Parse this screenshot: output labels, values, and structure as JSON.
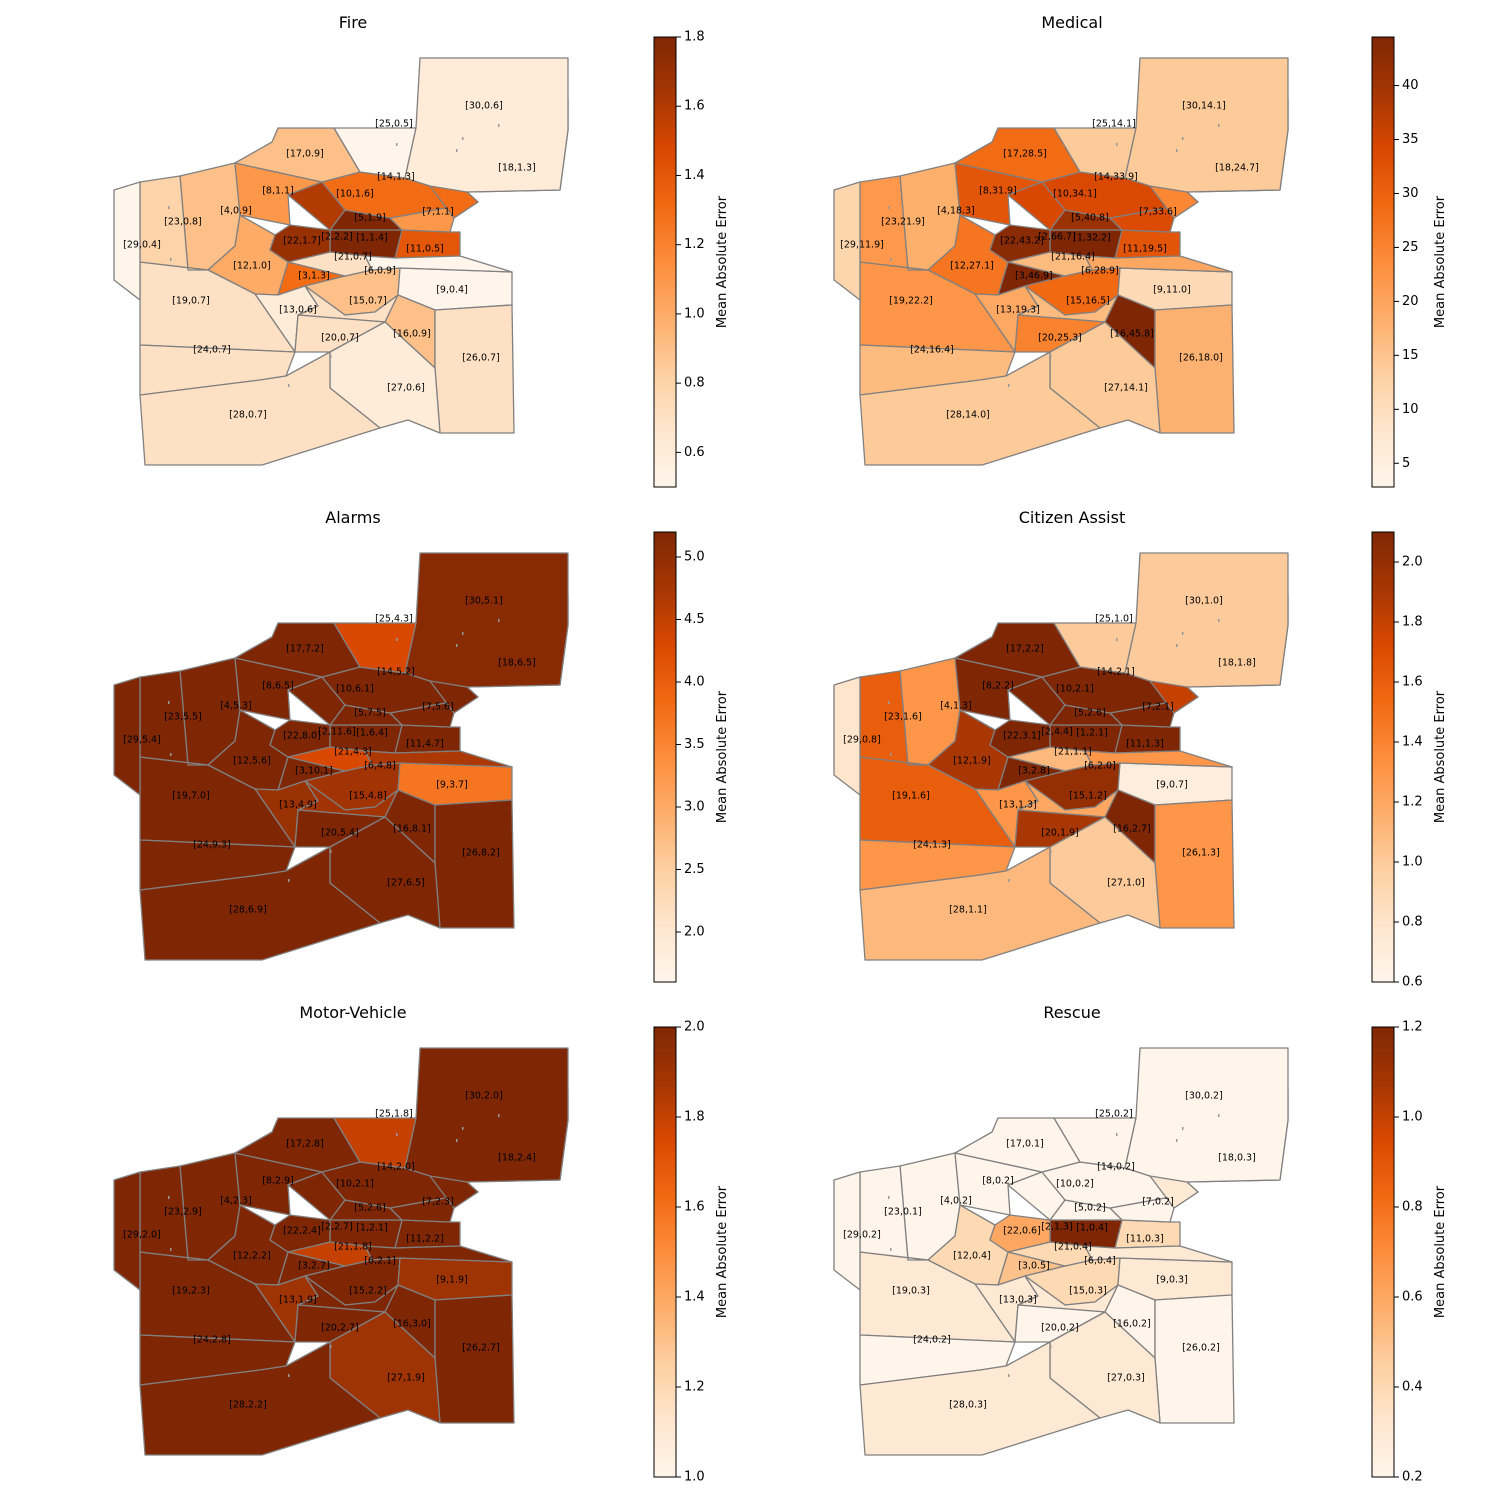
{
  "chart_data": [
    {
      "type": "choropleth",
      "title": "Fire",
      "colorbar_label": "Mean Absolute Error",
      "vmin": 0.5,
      "vmax": 1.8,
      "ticks": [
        0.6,
        0.8,
        1.0,
        1.2,
        1.4,
        1.6,
        1.8
      ],
      "tick_labels": [
        "0.6",
        "0.8",
        "1.0",
        "1.2",
        "1.4",
        "1.6",
        "1.8"
      ],
      "regions": {
        "1": {
          "value": 1.4,
          "label": "[1,1.4]"
        },
        "2": {
          "value": 2.2,
          "label": "[2,2.2]"
        },
        "3": {
          "value": 1.3,
          "label": "[3,1.3]"
        },
        "4": {
          "value": 0.9,
          "label": "[4,0.9]"
        },
        "5": {
          "value": 1.9,
          "label": "[5,1.9]"
        },
        "6": {
          "value": 0.9,
          "label": "[6,0.9]"
        },
        "7": {
          "value": 1.1,
          "label": "[7,1.1]"
        },
        "8": {
          "value": 1.1,
          "label": "[8,1.1]"
        },
        "9": {
          "value": 0.4,
          "label": "[9,0.4]"
        },
        "10": {
          "value": 1.6,
          "label": "[10,1.6]"
        },
        "11": {
          "value": 0.5,
          "label": "[11,0.5]"
        },
        "12": {
          "value": 1.0,
          "label": "[12,1.0]"
        },
        "13": {
          "value": 0.6,
          "label": "[13,0.6]"
        },
        "14": {
          "value": 1.3,
          "label": "[14,1.3]"
        },
        "15": {
          "value": 0.7,
          "label": "[15,0.7]"
        },
        "16": {
          "value": 0.9,
          "label": "[16,0.9]"
        },
        "17": {
          "value": 0.9,
          "label": "[17,0.9]"
        },
        "18": {
          "value": 1.3,
          "label": "[18,1.3]"
        },
        "19": {
          "value": 0.7,
          "label": "[19,0.7]"
        },
        "20": {
          "value": 0.7,
          "label": "[20,0.7]"
        },
        "21": {
          "value": 0.7,
          "label": "[21,0.7]"
        },
        "22": {
          "value": 1.7,
          "label": "[22,1.7]"
        },
        "23": {
          "value": 0.8,
          "label": "[23,0.8]"
        },
        "24": {
          "value": 0.7,
          "label": "[24,0.7]"
        },
        "25": {
          "value": 0.5,
          "label": "[25,0.5]"
        },
        "26": {
          "value": 0.7,
          "label": "[26,0.7]"
        },
        "27": {
          "value": 0.6,
          "label": "[27,0.6]"
        },
        "28": {
          "value": 0.7,
          "label": "[28,0.7]"
        },
        "29": {
          "value": 0.4,
          "label": "[29,0.4]"
        },
        "30": {
          "value": 0.6,
          "label": "[30,0.6]"
        }
      }
    },
    {
      "type": "choropleth",
      "title": "Medical",
      "colorbar_label": "Mean Absolute Error",
      "vmin": 2.8,
      "vmax": 44.5,
      "ticks": [
        5,
        10,
        15,
        20,
        25,
        30,
        35,
        40
      ],
      "tick_labels": [
        "5",
        "10",
        "15",
        "20",
        "25",
        "30",
        "35",
        "40"
      ],
      "regions": {
        "1": {
          "value": 32.2,
          "label": "[1,32.2]"
        },
        "2": {
          "value": 66.7,
          "label": "[2,66.7]"
        },
        "3": {
          "value": 46.9,
          "label": "[3,46.9]"
        },
        "4": {
          "value": 18.3,
          "label": "[4,18.3]"
        },
        "5": {
          "value": 40.8,
          "label": "[5,40.8]"
        },
        "6": {
          "value": 28.9,
          "label": "[6,28.9]"
        },
        "7": {
          "value": 33.6,
          "label": "[7,33.6]"
        },
        "8": {
          "value": 31.9,
          "label": "[8,31.9]"
        },
        "9": {
          "value": 11.0,
          "label": "[9,11.0]"
        },
        "10": {
          "value": 34.1,
          "label": "[10,34.1]"
        },
        "11": {
          "value": 19.5,
          "label": "[11,19.5]"
        },
        "12": {
          "value": 27.1,
          "label": "[12,27.1]"
        },
        "13": {
          "value": 19.3,
          "label": "[13,19.3]"
        },
        "14": {
          "value": 33.9,
          "label": "[14,33.9]"
        },
        "15": {
          "value": 16.5,
          "label": "[15,16.5]"
        },
        "16": {
          "value": 45.8,
          "label": "[16,45.8]"
        },
        "17": {
          "value": 28.5,
          "label": "[17,28.5]"
        },
        "18": {
          "value": 24.7,
          "label": "[18,24.7]"
        },
        "19": {
          "value": 22.2,
          "label": "[19,22.2]"
        },
        "20": {
          "value": 25.3,
          "label": "[20,25.3]"
        },
        "21": {
          "value": 16.4,
          "label": "[21,16.4]"
        },
        "22": {
          "value": 43.2,
          "label": "[22,43.2]"
        },
        "23": {
          "value": 21.9,
          "label": "[23,21.9]"
        },
        "24": {
          "value": 16.4,
          "label": "[24,16.4]"
        },
        "25": {
          "value": 14.1,
          "label": "[25,14.1]"
        },
        "26": {
          "value": 18.0,
          "label": "[26,18.0]"
        },
        "27": {
          "value": 14.1,
          "label": "[27,14.1]"
        },
        "28": {
          "value": 14.0,
          "label": "[28,14.0]"
        },
        "29": {
          "value": 11.9,
          "label": "[29,11.9]"
        },
        "30": {
          "value": 14.1,
          "label": "[30,14.1]"
        }
      }
    },
    {
      "type": "choropleth",
      "title": "Alarms",
      "colorbar_label": "Mean Absolute Error",
      "vmin": 1.6,
      "vmax": 5.2,
      "ticks": [
        2.0,
        2.5,
        3.0,
        3.5,
        4.0,
        4.5,
        5.0
      ],
      "tick_labels": [
        "2.0",
        "2.5",
        "3.0",
        "3.5",
        "4.0",
        "4.5",
        "5.0"
      ],
      "regions": {
        "1": {
          "value": 6.4,
          "label": "[1,6.4]"
        },
        "2": {
          "value": 11.6,
          "label": "[2,11.6]"
        },
        "3": {
          "value": 10.1,
          "label": "[3,10.1]"
        },
        "4": {
          "value": 5.3,
          "label": "[4,5.3]"
        },
        "5": {
          "value": 7.5,
          "label": "[5,7.5]"
        },
        "6": {
          "value": 4.8,
          "label": "[6,4.8]"
        },
        "7": {
          "value": 5.6,
          "label": "[7,5.6]"
        },
        "8": {
          "value": 6.5,
          "label": "[8,6.5]"
        },
        "9": {
          "value": 3.7,
          "label": "[9,3.7]"
        },
        "10": {
          "value": 6.1,
          "label": "[10,6.1]"
        },
        "11": {
          "value": 4.7,
          "label": "[11,4.7]"
        },
        "12": {
          "value": 5.6,
          "label": "[12,5.6]"
        },
        "13": {
          "value": 4.9,
          "label": "[13,4.9]"
        },
        "14": {
          "value": 5.2,
          "label": "[14,5.2]"
        },
        "15": {
          "value": 4.8,
          "label": "[15,4.8]"
        },
        "16": {
          "value": 8.1,
          "label": "[16,8.1]"
        },
        "17": {
          "value": 7.2,
          "label": "[17,7.2]"
        },
        "18": {
          "value": 6.5,
          "label": "[18,6.5]"
        },
        "19": {
          "value": 7.0,
          "label": "[19,7.0]"
        },
        "20": {
          "value": 5.4,
          "label": "[20,5.4]"
        },
        "21": {
          "value": 4.3,
          "label": "[21,4.3]"
        },
        "22": {
          "value": 8.0,
          "label": "[22,8.0]"
        },
        "23": {
          "value": 5.5,
          "label": "[23,5.5]"
        },
        "24": {
          "value": 9.3,
          "label": "[24,9.3]"
        },
        "25": {
          "value": 4.3,
          "label": "[25,4.3]"
        },
        "26": {
          "value": 8.2,
          "label": "[26,8.2]"
        },
        "27": {
          "value": 6.5,
          "label": "[27,6.5]"
        },
        "28": {
          "value": 6.9,
          "label": "[28,6.9]"
        },
        "29": {
          "value": 5.4,
          "label": "[29,5.4]"
        },
        "30": {
          "value": 5.1,
          "label": "[30,5.1]"
        }
      }
    },
    {
      "type": "choropleth",
      "title": "Citizen Assist",
      "colorbar_label": "Mean Absolute Error",
      "vmin": 0.6,
      "vmax": 2.1,
      "ticks": [
        0.6,
        0.8,
        1.0,
        1.2,
        1.4,
        1.6,
        1.8,
        2.0
      ],
      "tick_labels": [
        "0.6",
        "0.8",
        "1.0",
        "1.2",
        "1.4",
        "1.6",
        "1.8",
        "2.0"
      ],
      "regions": {
        "1": {
          "value": 2.1,
          "label": "[1,2.1]"
        },
        "2": {
          "value": 4.4,
          "label": "[2,4.4]"
        },
        "3": {
          "value": 2.8,
          "label": "[3,2.8]"
        },
        "4": {
          "value": 1.3,
          "label": "[4,1.3]"
        },
        "5": {
          "value": 2.6,
          "label": "[5,2.6]"
        },
        "6": {
          "value": 2.0,
          "label": "[6,2.0]"
        },
        "7": {
          "value": 2.1,
          "label": "[7,2.1]"
        },
        "8": {
          "value": 2.2,
          "label": "[8,2.2]"
        },
        "9": {
          "value": 0.7,
          "label": "[9,0.7]"
        },
        "10": {
          "value": 2.1,
          "label": "[10,2.1]"
        },
        "11": {
          "value": 1.3,
          "label": "[11,1.3]"
        },
        "12": {
          "value": 1.9,
          "label": "[12,1.9]"
        },
        "13": {
          "value": 1.3,
          "label": "[13,1.3]"
        },
        "14": {
          "value": 2.1,
          "label": "[14,2.1]"
        },
        "15": {
          "value": 1.2,
          "label": "[15,1.2]"
        },
        "16": {
          "value": 2.7,
          "label": "[16,2.7]"
        },
        "17": {
          "value": 2.2,
          "label": "[17,2.2]"
        },
        "18": {
          "value": 1.8,
          "label": "[18,1.8]"
        },
        "19": {
          "value": 1.6,
          "label": "[19,1.6]"
        },
        "20": {
          "value": 1.9,
          "label": "[20,1.9]"
        },
        "21": {
          "value": 1.1,
          "label": "[21,1.1]"
        },
        "22": {
          "value": 3.1,
          "label": "[22,3.1]"
        },
        "23": {
          "value": 1.6,
          "label": "[23,1.6]"
        },
        "24": {
          "value": 1.3,
          "label": "[24,1.3]"
        },
        "25": {
          "value": 1.0,
          "label": "[25,1.0]"
        },
        "26": {
          "value": 1.3,
          "label": "[26,1.3]"
        },
        "27": {
          "value": 1.0,
          "label": "[27,1.0]"
        },
        "28": {
          "value": 1.1,
          "label": "[28,1.1]"
        },
        "29": {
          "value": 0.8,
          "label": "[29,0.8]"
        },
        "30": {
          "value": 1.0,
          "label": "[30,1.0]"
        }
      }
    },
    {
      "type": "choropleth",
      "title": "Motor-Vehicle",
      "colorbar_label": "Mean Absolute Error",
      "vmin": 1.0,
      "vmax": 2.0,
      "ticks": [
        1.0,
        1.2,
        1.4,
        1.6,
        1.8,
        2.0
      ],
      "tick_labels": [
        "1.0",
        "1.2",
        "1.4",
        "1.6",
        "1.8",
        "2.0"
      ],
      "regions": {
        "1": {
          "value": 2.1,
          "label": "[1,2.1]"
        },
        "2": {
          "value": 2.7,
          "label": "[2,2.7]"
        },
        "3": {
          "value": 2.7,
          "label": "[3,2.7]"
        },
        "4": {
          "value": 2.3,
          "label": "[4,2.3]"
        },
        "5": {
          "value": 2.6,
          "label": "[5,2.6]"
        },
        "6": {
          "value": 2.1,
          "label": "[6,2.1]"
        },
        "7": {
          "value": 2.3,
          "label": "[7,2.3]"
        },
        "8": {
          "value": 2.9,
          "label": "[8,2.9]"
        },
        "9": {
          "value": 1.9,
          "label": "[9,1.9]"
        },
        "10": {
          "value": 2.1,
          "label": "[10,2.1]"
        },
        "11": {
          "value": 2.2,
          "label": "[11,2.2]"
        },
        "12": {
          "value": 2.2,
          "label": "[12,2.2]"
        },
        "13": {
          "value": 1.9,
          "label": "[13,1.9]"
        },
        "14": {
          "value": 2.0,
          "label": "[14,2.0]"
        },
        "15": {
          "value": 2.2,
          "label": "[15,2.2]"
        },
        "16": {
          "value": 3.0,
          "label": "[16,3.0]"
        },
        "17": {
          "value": 2.8,
          "label": "[17,2.8]"
        },
        "18": {
          "value": 2.4,
          "label": "[18,2.4]"
        },
        "19": {
          "value": 2.3,
          "label": "[19,2.3]"
        },
        "20": {
          "value": 2.7,
          "label": "[20,2.7]"
        },
        "21": {
          "value": 1.8,
          "label": "[21,1.8]"
        },
        "22": {
          "value": 2.4,
          "label": "[22,2.4]"
        },
        "23": {
          "value": 2.9,
          "label": "[23,2.9]"
        },
        "24": {
          "value": 2.8,
          "label": "[24,2.8]"
        },
        "25": {
          "value": 1.8,
          "label": "[25,1.8]"
        },
        "26": {
          "value": 2.7,
          "label": "[26,2.7]"
        },
        "27": {
          "value": 1.9,
          "label": "[27,1.9]"
        },
        "28": {
          "value": 2.2,
          "label": "[28,2.2]"
        },
        "29": {
          "value": 2.0,
          "label": "[29,2.0]"
        },
        "30": {
          "value": 2.0,
          "label": "[30,2.0]"
        }
      }
    },
    {
      "type": "choropleth",
      "title": "Rescue",
      "colorbar_label": "Mean Absolute Error",
      "vmin": 0.2,
      "vmax": 1.2,
      "ticks": [
        0.2,
        0.4,
        0.6,
        0.8,
        1.0,
        1.2
      ],
      "tick_labels": [
        "0.2",
        "0.4",
        "0.6",
        "0.8",
        "1.0",
        "1.2"
      ],
      "regions": {
        "1": {
          "value": 0.4,
          "label": "[1,0.4]"
        },
        "2": {
          "value": 1.3,
          "label": "[2,1.3]"
        },
        "3": {
          "value": 0.5,
          "label": "[3,0.5]"
        },
        "4": {
          "value": 0.2,
          "label": "[4,0.2]"
        },
        "5": {
          "value": 0.2,
          "label": "[5,0.2]"
        },
        "6": {
          "value": 0.4,
          "label": "[6,0.4]"
        },
        "7": {
          "value": 0.2,
          "label": "[7,0.2]"
        },
        "8": {
          "value": 0.2,
          "label": "[8,0.2]"
        },
        "9": {
          "value": 0.3,
          "label": "[9,0.3]"
        },
        "10": {
          "value": 0.2,
          "label": "[10,0.2]"
        },
        "11": {
          "value": 0.3,
          "label": "[11,0.3]"
        },
        "12": {
          "value": 0.4,
          "label": "[12,0.4]"
        },
        "13": {
          "value": 0.3,
          "label": "[13,0.3]"
        },
        "14": {
          "value": 0.2,
          "label": "[14,0.2]"
        },
        "15": {
          "value": 0.3,
          "label": "[15,0.3]"
        },
        "16": {
          "value": 0.2,
          "label": "[16,0.2]"
        },
        "17": {
          "value": 0.1,
          "label": "[17,0.1]"
        },
        "18": {
          "value": 0.3,
          "label": "[18,0.3]"
        },
        "19": {
          "value": 0.3,
          "label": "[19,0.3]"
        },
        "20": {
          "value": 0.2,
          "label": "[20,0.2]"
        },
        "21": {
          "value": 0.4,
          "label": "[21,0.4]"
        },
        "22": {
          "value": 0.6,
          "label": "[22,0.6]"
        },
        "23": {
          "value": 0.1,
          "label": "[23,0.1]"
        },
        "24": {
          "value": 0.2,
          "label": "[24,0.2]"
        },
        "25": {
          "value": 0.2,
          "label": "[25,0.2]"
        },
        "26": {
          "value": 0.2,
          "label": "[26,0.2]"
        },
        "27": {
          "value": 0.3,
          "label": "[27,0.3]"
        },
        "28": {
          "value": 0.3,
          "label": "[28,0.3]"
        },
        "29": {
          "value": 0.2,
          "label": "[29,0.2]"
        },
        "30": {
          "value": 0.2,
          "label": "[30,0.2]"
        }
      }
    }
  ]
}
